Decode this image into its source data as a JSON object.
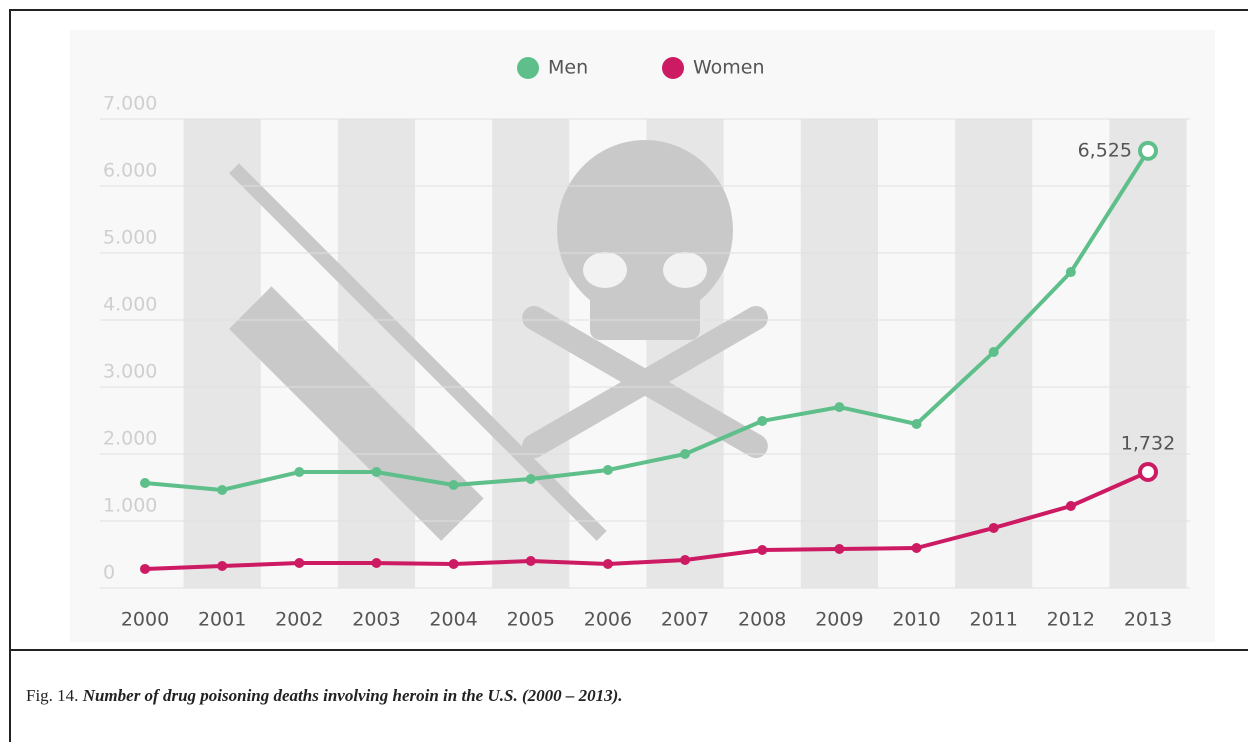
{
  "chart_data": {
    "type": "line",
    "categories": [
      "2000",
      "2001",
      "2002",
      "2003",
      "2004",
      "2005",
      "2006",
      "2007",
      "2008",
      "2009",
      "2010",
      "2011",
      "2012",
      "2013"
    ],
    "series": [
      {
        "name": "Men",
        "color": "#5fbf8a",
        "values": [
          1567,
          1463,
          1731,
          1731,
          1537,
          1627,
          1761,
          2000,
          2493,
          2700,
          2448,
          3522,
          4716,
          6525
        ],
        "value_labels": [
          null,
          null,
          null,
          null,
          null,
          null,
          null,
          null,
          null,
          null,
          null,
          null,
          null,
          "6,525"
        ]
      },
      {
        "name": "Women",
        "color": "#cc1a63",
        "values": [
          284,
          328,
          373,
          373,
          358,
          403,
          358,
          418,
          567,
          582,
          597,
          896,
          1224,
          1732
        ],
        "value_labels": [
          null,
          null,
          null,
          null,
          null,
          null,
          null,
          null,
          null,
          null,
          null,
          null,
          null,
          "1,732"
        ]
      }
    ],
    "ylim": [
      0,
      7000
    ],
    "yticks": [
      {
        "value": 0,
        "label": "0"
      },
      {
        "value": 1000,
        "label": "1.000"
      },
      {
        "value": 2000,
        "label": "2.000"
      },
      {
        "value": 3000,
        "label": "3.000"
      },
      {
        "value": 4000,
        "label": "4.000"
      },
      {
        "value": 5000,
        "label": "5.000"
      },
      {
        "value": 6000,
        "label": "6.000"
      },
      {
        "value": 7000,
        "label": "7.000"
      }
    ],
    "legend": "top"
  },
  "figure_caption": {
    "label": "Fig. 14.",
    "text": "Number of drug poisoning deaths involving heroin in the U.S. (2000 – 2013)."
  }
}
